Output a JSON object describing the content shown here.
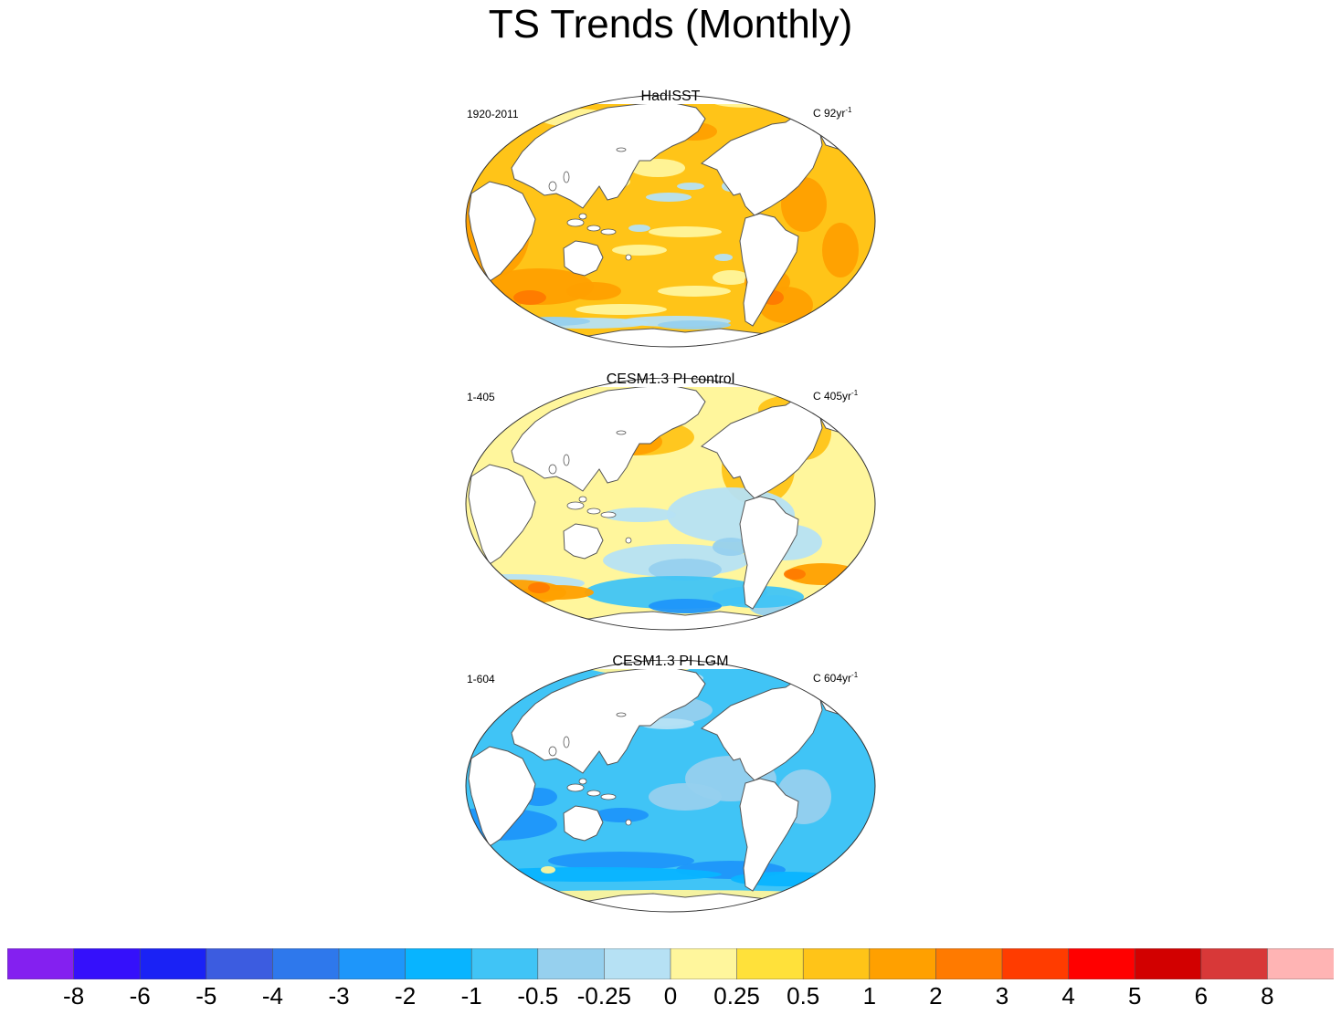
{
  "title": "TS Trends (Monthly)",
  "panels": [
    {
      "title": "HadISST",
      "period": "1920-2011",
      "units_prefix": "C 92yr",
      "units_sup": "-1",
      "scheme": "hadisst"
    },
    {
      "title": "CESM1.3 PI control",
      "period": "1-405",
      "units_prefix": "C 405yr",
      "units_sup": "-1",
      "scheme": "control"
    },
    {
      "title": "CESM1.3 PI LGM",
      "period": "1-604",
      "units_prefix": "C 604yr",
      "units_sup": "-1",
      "scheme": "lgm"
    }
  ],
  "colorbar": {
    "colors": [
      "#8420f0",
      "#3510fb",
      "#1a22f5",
      "#3c5ce0",
      "#2e78ec",
      "#1e96fa",
      "#08b4ff",
      "#40c4f6",
      "#96d0ee",
      "#b6e1f4",
      "#fff69c",
      "#ffe13a",
      "#ffc418",
      "#ffa000",
      "#ff7a00",
      "#ff3c00",
      "#ff0000",
      "#d20000",
      "#d83838",
      "#ffb4b4"
    ],
    "labels": [
      "-8",
      "-6",
      "-5",
      "-4",
      "-3",
      "-2",
      "-1",
      "-0.5",
      "-0.25",
      "0",
      "0.25",
      "0.5",
      "1",
      "2",
      "3",
      "4",
      "5",
      "6",
      "8"
    ]
  }
}
